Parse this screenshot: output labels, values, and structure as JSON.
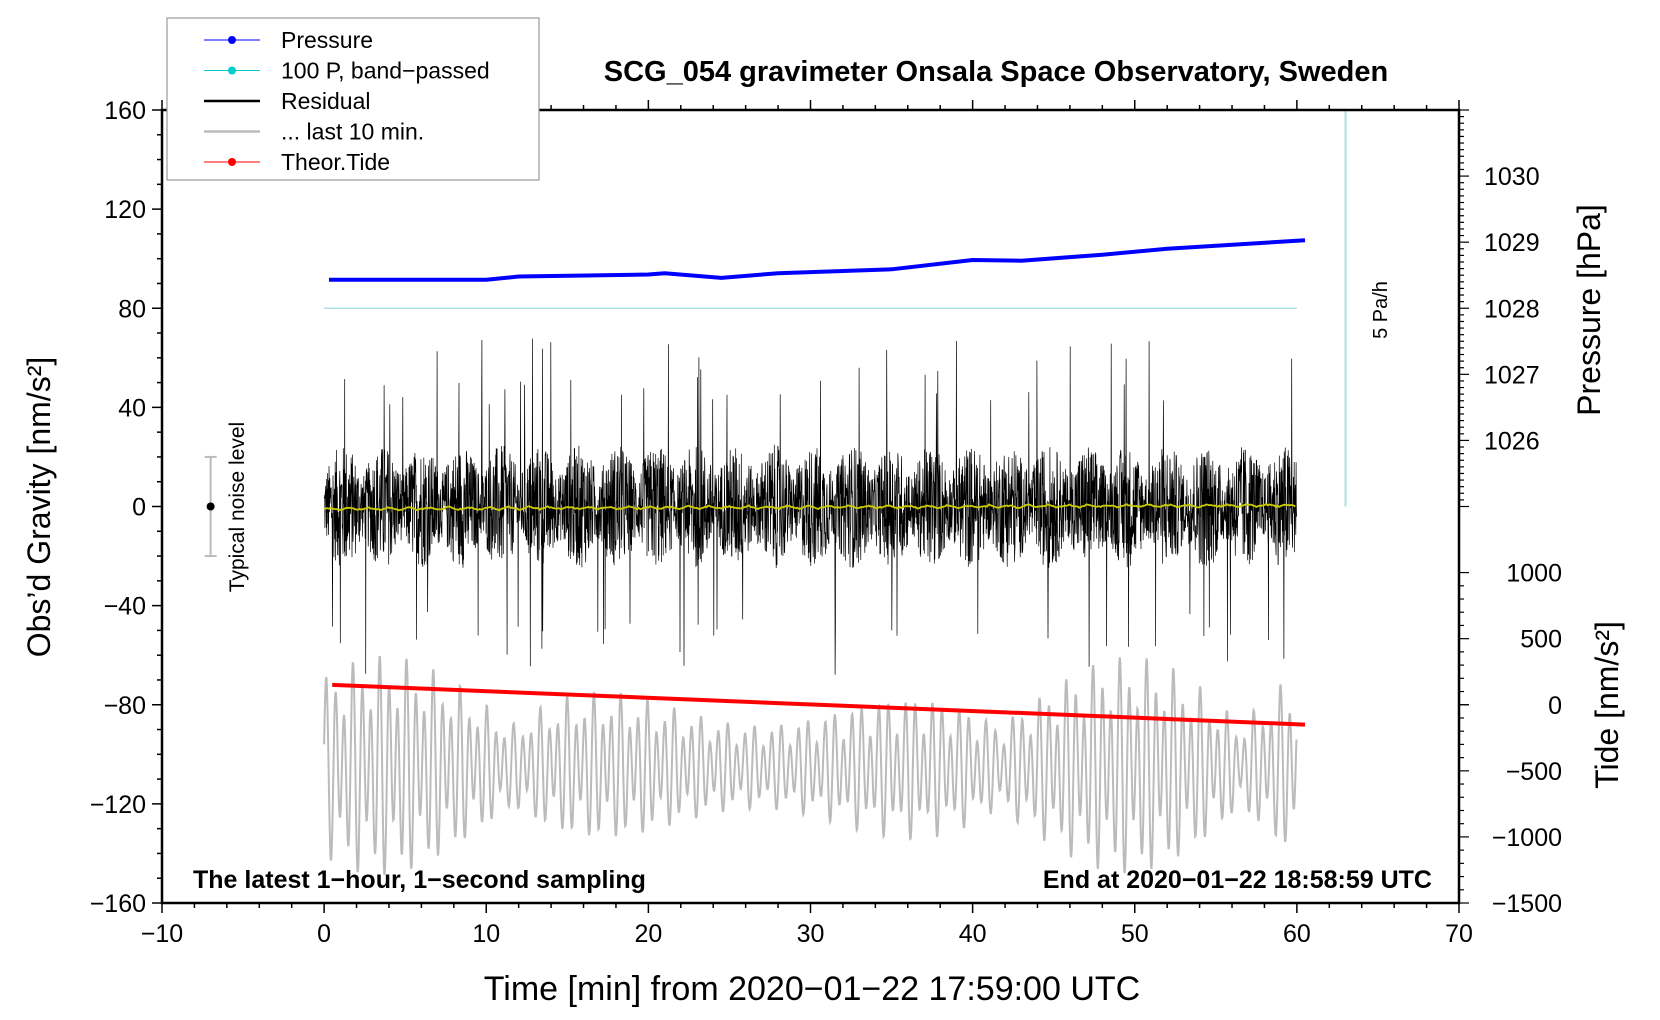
{
  "chart_data": {
    "type": "line",
    "title": "SCG_054 gravimeter Onsala Space Observatory, Sweden",
    "xlabel": "Time [min] from 2020−01−22 17:59:00 UTC",
    "ylabel": "Obs’d Gravity [nm/s²]",
    "ylabel_right_top": "Pressure [hPa]",
    "ylabel_right_bottom": "Tide [nm/s²]",
    "xlim": [
      -10,
      70
    ],
    "ylim": [
      -160,
      160
    ],
    "pressure_axis_range": [
      1025,
      1031
    ],
    "tide_axis_range": [
      -1500,
      1500
    ],
    "x_ticks": [
      "−10",
      "0",
      "10",
      "20",
      "30",
      "40",
      "50",
      "60",
      "70"
    ],
    "x_tick_values": [
      -10,
      0,
      10,
      20,
      30,
      40,
      50,
      60,
      70
    ],
    "y_ticks": [
      "160",
      "120",
      "80",
      "40",
      "0",
      "−40",
      "−80",
      "−120",
      "−160"
    ],
    "y_tick_values": [
      160,
      120,
      80,
      40,
      0,
      -40,
      -80,
      -120,
      -160
    ],
    "pressure_ticks": [
      "1030",
      "1029",
      "1028",
      "1027",
      "1026"
    ],
    "pressure_tick_values": [
      1030,
      1029,
      1028,
      1027,
      1026
    ],
    "tide_ticks": [
      "1000",
      "500",
      "0",
      "−500",
      "−1000",
      "−1500"
    ],
    "tide_tick_values": [
      1000,
      500,
      0,
      -500,
      -1000,
      -1500
    ],
    "legend_placement": "top-left",
    "legend": [
      {
        "label": "Pressure",
        "color": "#0000ff",
        "marker": true
      },
      {
        "label": "100 P, band−passed",
        "color": "#00cccc",
        "marker": true
      },
      {
        "label": "Residual",
        "color": "#000000",
        "marker": false
      },
      {
        "label": "... last 10 min.",
        "color": "#bbbbbb",
        "marker": false
      },
      {
        "label": "Theor.Tide",
        "color": "#ff0000",
        "marker": true
      }
    ],
    "series": [
      {
        "name": "Pressure",
        "unit": "hPa",
        "color": "#0000ff",
        "points": [
          [
            0.3,
            1028.43
          ],
          [
            10,
            1028.43
          ],
          [
            12,
            1028.48
          ],
          [
            20,
            1028.51
          ],
          [
            21,
            1028.53
          ],
          [
            24.5,
            1028.46
          ],
          [
            28,
            1028.53
          ],
          [
            35,
            1028.59
          ],
          [
            40,
            1028.73
          ],
          [
            43,
            1028.72
          ],
          [
            48,
            1028.81
          ],
          [
            52,
            1028.9
          ],
          [
            60.5,
            1029.03
          ]
        ]
      },
      {
        "name": "100 P, band-passed",
        "unit": "nm/s² (offset)",
        "color": "#aee0e0",
        "offset": 80,
        "points": [
          [
            0,
            80
          ],
          [
            60,
            80
          ]
        ]
      },
      {
        "name": "Residual",
        "unit": "nm/s²",
        "color": "#000000",
        "sampling_s": 1,
        "t_range": [
          0,
          60
        ],
        "typical_amplitude": 25,
        "max_abs": 68
      },
      {
        "name": "Residual smoothed",
        "color": "#cccc00",
        "level": 0
      },
      {
        "name": "... last 10 min.",
        "color": "#bbbbbb",
        "center": -105,
        "amplitude": 45,
        "period_min": 0.55
      },
      {
        "name": "Theor.Tide",
        "unit": "nm/s²",
        "color": "#ff0000",
        "points": [
          [
            0.5,
            150
          ],
          [
            60.5,
            -150
          ]
        ]
      }
    ],
    "noise_bar": {
      "x": -7,
      "center": 0,
      "half_range": 20,
      "label": "Typical noise level"
    },
    "scale_bar": {
      "x": 63,
      "from": 0,
      "to": 160,
      "label": "5 Pa/h"
    },
    "annotations": {
      "bottom_left": "The latest 1−hour, 1−second sampling",
      "bottom_right": "End at 2020−01−22 18:58:59 UTC"
    }
  }
}
